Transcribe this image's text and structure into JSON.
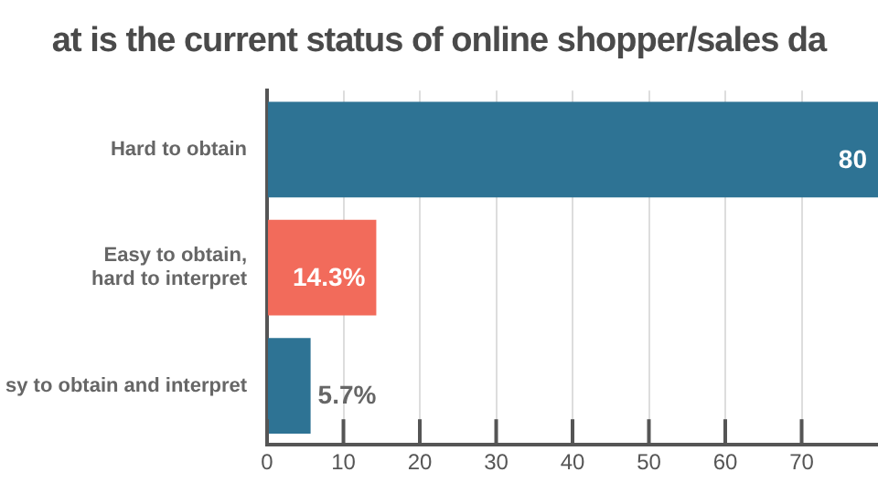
{
  "chart_data": {
    "type": "bar",
    "orientation": "horizontal",
    "title": "at is the current status of online shopper/sales da",
    "categories": [
      "Hard to obtain",
      "Easy to obtain,\nhard to interpret",
      "sy to obtain and interpret"
    ],
    "values": [
      80,
      14.3,
      5.7
    ],
    "colors": [
      "#2e7394",
      "#f26b5b",
      "#2e7394"
    ],
    "value_labels": [
      "80",
      "14.3%",
      "5.7%"
    ],
    "xlim": [
      0,
      80
    ],
    "xticks": [
      0,
      10,
      20,
      30,
      40,
      50,
      60,
      70
    ],
    "grid": "x",
    "legend": false
  }
}
